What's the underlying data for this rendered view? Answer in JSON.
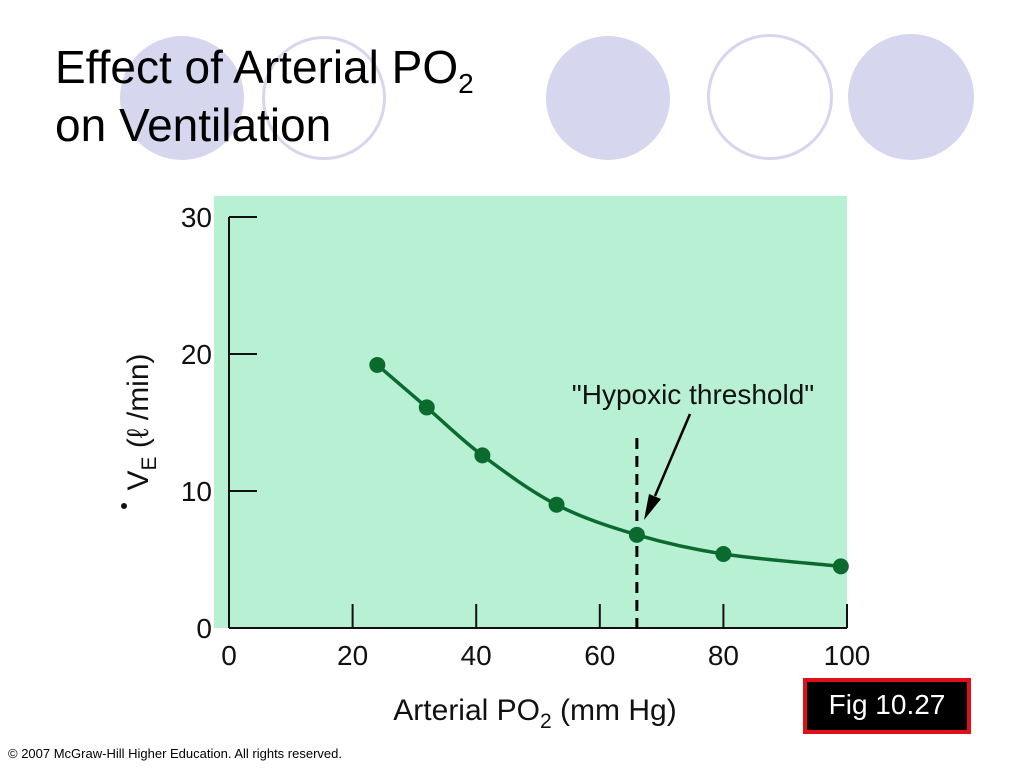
{
  "slide": {
    "title_line1": "Effect of Arterial PO",
    "title_sub": "2",
    "title_line2": "on Ventilation",
    "fig_label": "Fig 10.27",
    "copyright": "© 2007 McGraw-Hill Higher Education. All rights reserved."
  },
  "colors": {
    "plot_background": "#b8f0d4",
    "series": "#0b6b2e",
    "decoration": "#d6d6ee",
    "fig_border": "#e0101a"
  },
  "chart_data": {
    "type": "line",
    "x": [
      24,
      32,
      41,
      53,
      66,
      80,
      99
    ],
    "series": [
      {
        "name": "",
        "values": [
          19.2,
          16.1,
          12.6,
          9.0,
          6.8,
          5.4,
          4.5
        ],
        "smooth": true,
        "markers": true
      }
    ],
    "xlim": [
      0,
      100
    ],
    "ylim": [
      0,
      30
    ],
    "x_ticks": [
      0,
      20,
      40,
      60,
      80,
      100
    ],
    "y_ticks": [
      0,
      10,
      20,
      30
    ],
    "xlabel": "Arterial PO",
    "xlabel_sub": "2",
    "xlabel_suffix": " (mm Hg)",
    "ylabel": "V",
    "ylabel_sub": "E",
    "ylabel_suffix": " (ℓ /min)",
    "grid": false,
    "legend": "none",
    "annotations": [
      {
        "text": "\"Hypoxic threshold\"",
        "x": 66,
        "type": "vertical-dashed-line-with-arrow"
      }
    ]
  }
}
